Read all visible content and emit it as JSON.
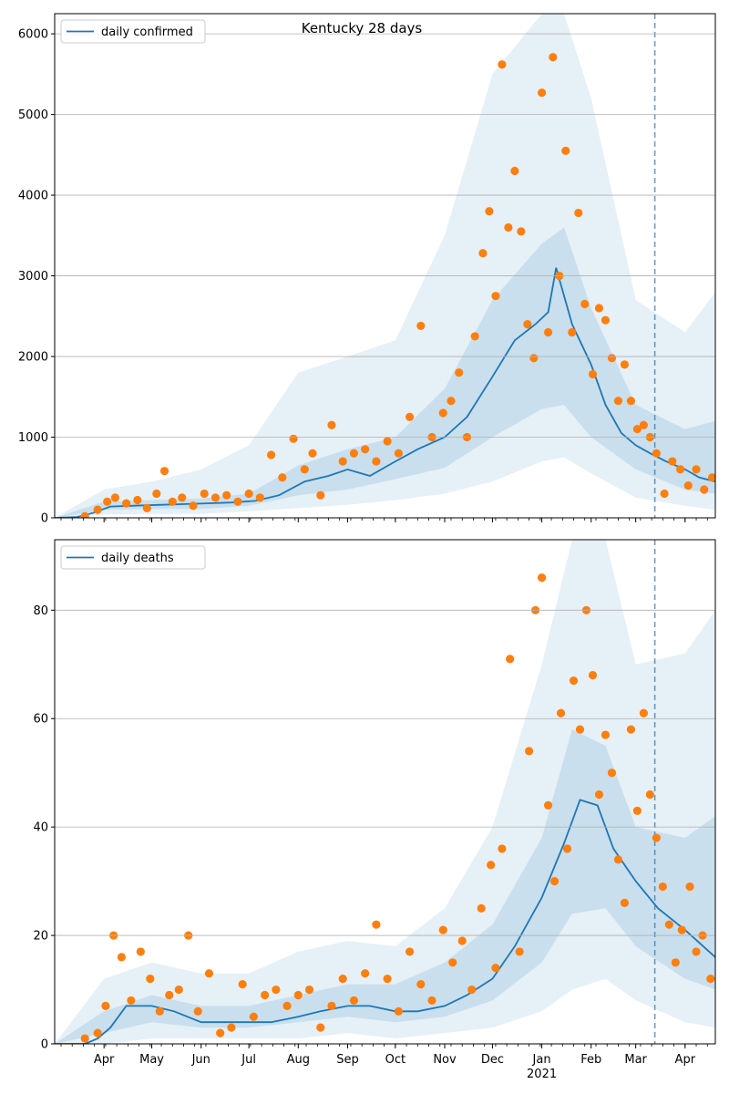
{
  "figure": {
    "title": "Kentucky 28 days"
  },
  "colors": {
    "line": "#1f77b4",
    "points": "#ff7f0e",
    "band": "#1f77b4",
    "grid": "#b0b0b0",
    "axis": "#000000"
  },
  "chart_data": [
    {
      "type": "line",
      "name": "cases",
      "legend": "daily confirmed",
      "legend_position": "top-left",
      "grid": "horizontal",
      "x_unit": "date",
      "x_range": [
        "2020-03-01",
        "2021-04-20"
      ],
      "y_range": [
        0,
        6250
      ],
      "y_ticks": [
        0,
        1000,
        2000,
        3000,
        4000,
        5000,
        6000
      ],
      "forecast_start": "2021-03-13",
      "series": [
        {
          "name": "daily confirmed",
          "x": [
            "2020-03-01",
            "2020-03-15",
            "2020-03-25",
            "2020-04-05",
            "2020-04-20",
            "2020-05-05",
            "2020-05-20",
            "2020-06-05",
            "2020-06-20",
            "2020-07-05",
            "2020-07-20",
            "2020-08-05",
            "2020-08-20",
            "2020-09-01",
            "2020-09-15",
            "2020-10-01",
            "2020-10-15",
            "2020-11-01",
            "2020-11-15",
            "2020-12-01",
            "2020-12-15",
            "2020-12-28",
            "2021-01-05",
            "2021-01-10",
            "2021-01-20",
            "2021-02-01",
            "2021-02-10",
            "2021-02-20",
            "2021-03-01",
            "2021-03-10",
            "2021-03-20",
            "2021-04-01",
            "2021-04-10",
            "2021-04-20"
          ],
          "y": [
            0,
            10,
            60,
            140,
            150,
            160,
            170,
            180,
            190,
            210,
            280,
            450,
            520,
            600,
            520,
            700,
            850,
            1000,
            1250,
            1750,
            2200,
            2400,
            2550,
            3100,
            2400,
            1900,
            1400,
            1050,
            900,
            800,
            700,
            600,
            500,
            450
          ]
        }
      ],
      "band_inner": {
        "x": [
          "2020-03-01",
          "2020-04-01",
          "2020-05-01",
          "2020-06-01",
          "2020-07-01",
          "2020-08-01",
          "2020-09-01",
          "2020-10-01",
          "2020-11-01",
          "2020-12-01",
          "2021-01-01",
          "2021-01-15",
          "2021-02-01",
          "2021-03-01",
          "2021-04-01",
          "2021-04-20"
        ],
        "low": [
          0,
          100,
          110,
          110,
          150,
          280,
          350,
          480,
          620,
          1000,
          1350,
          1400,
          1000,
          600,
          350,
          300
        ],
        "high": [
          0,
          200,
          220,
          240,
          300,
          650,
          850,
          1000,
          1600,
          2700,
          3400,
          3600,
          2600,
          1400,
          1100,
          1200
        ]
      },
      "band_outer": {
        "x": [
          "2020-03-01",
          "2020-04-01",
          "2020-05-01",
          "2020-06-01",
          "2020-07-01",
          "2020-08-01",
          "2020-09-01",
          "2020-10-01",
          "2020-11-01",
          "2020-12-01",
          "2021-01-01",
          "2021-01-15",
          "2021-02-01",
          "2021-03-01",
          "2021-04-01",
          "2021-04-20"
        ],
        "low": [
          0,
          40,
          50,
          50,
          80,
          120,
          160,
          220,
          300,
          450,
          700,
          750,
          550,
          250,
          150,
          100
        ],
        "high": [
          0,
          350,
          450,
          600,
          900,
          1800,
          2000,
          2200,
          3500,
          5500,
          6250,
          6250,
          5200,
          2700,
          2300,
          2800
        ]
      },
      "points": {
        "x": [
          "2020-03-20",
          "2020-03-28",
          "2020-04-03",
          "2020-04-08",
          "2020-04-15",
          "2020-04-22",
          "2020-04-28",
          "2020-05-04",
          "2020-05-09",
          "2020-05-14",
          "2020-05-20",
          "2020-05-27",
          "2020-06-03",
          "2020-06-10",
          "2020-06-17",
          "2020-06-24",
          "2020-07-01",
          "2020-07-08",
          "2020-07-15",
          "2020-07-22",
          "2020-07-29",
          "2020-08-05",
          "2020-08-10",
          "2020-08-15",
          "2020-08-22",
          "2020-08-29",
          "2020-09-05",
          "2020-09-12",
          "2020-09-19",
          "2020-09-26",
          "2020-10-03",
          "2020-10-10",
          "2020-10-17",
          "2020-10-24",
          "2020-10-31",
          "2020-11-05",
          "2020-11-10",
          "2020-11-15",
          "2020-11-20",
          "2020-11-25",
          "2020-11-29",
          "2020-12-03",
          "2020-12-07",
          "2020-12-11",
          "2020-12-15",
          "2020-12-19",
          "2020-12-23",
          "2020-12-27",
          "2021-01-01",
          "2021-01-05",
          "2021-01-08",
          "2021-01-12",
          "2021-01-16",
          "2021-01-20",
          "2021-01-24",
          "2021-01-28",
          "2021-02-02",
          "2021-02-06",
          "2021-02-10",
          "2021-02-14",
          "2021-02-18",
          "2021-02-22",
          "2021-02-26",
          "2021-03-02",
          "2021-03-06",
          "2021-03-10",
          "2021-03-14",
          "2021-03-19",
          "2021-03-24",
          "2021-03-29",
          "2021-04-03",
          "2021-04-08",
          "2021-04-13",
          "2021-04-18"
        ],
        "y": [
          20,
          100,
          200,
          250,
          180,
          220,
          120,
          300,
          580,
          200,
          250,
          150,
          300,
          250,
          280,
          200,
          300,
          250,
          780,
          500,
          980,
          600,
          800,
          280,
          1150,
          700,
          800,
          850,
          700,
          950,
          800,
          1250,
          2380,
          1000,
          1300,
          1450,
          1800,
          1000,
          2250,
          3280,
          3800,
          2750,
          5620,
          3600,
          4300,
          3550,
          2400,
          1980,
          5270,
          2300,
          5710,
          3000,
          4550,
          2300,
          3780,
          2650,
          1780,
          2600,
          2450,
          1980,
          1450,
          1900,
          1450,
          1100,
          1150,
          1000,
          800,
          300,
          700,
          600,
          400,
          600,
          350,
          500
        ]
      }
    },
    {
      "type": "line",
      "name": "deaths",
      "legend": "daily deaths",
      "legend_position": "top-left",
      "grid": "horizontal",
      "x_unit": "date",
      "x_range": [
        "2020-03-01",
        "2021-04-20"
      ],
      "y_range": [
        0,
        93
      ],
      "y_ticks": [
        0,
        20,
        40,
        60,
        80
      ],
      "x_tick_labels": [
        "Apr",
        "May",
        "Jun",
        "Jul",
        "Aug",
        "Sep",
        "Oct",
        "Nov",
        "Dec",
        "Jan",
        "Feb",
        "Mar",
        "Apr"
      ],
      "x_tick_dates": [
        "2020-04-01",
        "2020-05-01",
        "2020-06-01",
        "2020-07-01",
        "2020-08-01",
        "2020-09-01",
        "2020-10-01",
        "2020-11-01",
        "2020-12-01",
        "2021-01-01",
        "2021-02-01",
        "2021-03-01",
        "2021-04-01"
      ],
      "year_label": "2021",
      "forecast_start": "2021-03-13",
      "series": [
        {
          "name": "daily deaths",
          "x": [
            "2020-03-01",
            "2020-03-20",
            "2020-03-28",
            "2020-04-05",
            "2020-04-15",
            "2020-05-01",
            "2020-05-15",
            "2020-06-01",
            "2020-06-15",
            "2020-07-01",
            "2020-07-15",
            "2020-08-01",
            "2020-08-15",
            "2020-09-01",
            "2020-09-15",
            "2020-10-01",
            "2020-10-15",
            "2020-11-01",
            "2020-11-15",
            "2020-12-01",
            "2020-12-15",
            "2021-01-01",
            "2021-01-15",
            "2021-01-25",
            "2021-02-05",
            "2021-02-15",
            "2021-03-01",
            "2021-03-15",
            "2021-04-01",
            "2021-04-20"
          ],
          "y": [
            0,
            0,
            1,
            3,
            7,
            7,
            6,
            4,
            4,
            4,
            4,
            5,
            6,
            7,
            7,
            6,
            6,
            7,
            9,
            12,
            18,
            27,
            37,
            45,
            44,
            36,
            30,
            25,
            21,
            16
          ]
        }
      ],
      "band_inner": {
        "x": [
          "2020-03-01",
          "2020-04-01",
          "2020-05-01",
          "2020-06-01",
          "2020-07-01",
          "2020-08-01",
          "2020-09-01",
          "2020-10-01",
          "2020-11-01",
          "2020-12-01",
          "2021-01-01",
          "2021-01-20",
          "2021-02-10",
          "2021-03-01",
          "2021-04-01",
          "2021-04-20"
        ],
        "low": [
          0,
          2,
          4,
          3,
          3,
          4,
          5,
          4,
          5,
          8,
          15,
          24,
          25,
          18,
          12,
          10
        ],
        "high": [
          0,
          6,
          9,
          7,
          7,
          9,
          11,
          11,
          15,
          22,
          38,
          58,
          55,
          40,
          38,
          42
        ]
      },
      "band_outer": {
        "x": [
          "2020-03-01",
          "2020-04-01",
          "2020-05-01",
          "2020-06-01",
          "2020-07-01",
          "2020-08-01",
          "2020-09-01",
          "2020-10-01",
          "2020-11-01",
          "2020-12-01",
          "2021-01-01",
          "2021-01-20",
          "2021-02-10",
          "2021-03-01",
          "2021-04-01",
          "2021-04-20"
        ],
        "low": [
          0,
          0,
          1,
          1,
          1,
          1,
          2,
          1,
          2,
          3,
          6,
          10,
          12,
          8,
          4,
          3
        ],
        "high": [
          0,
          12,
          15,
          13,
          13,
          17,
          19,
          18,
          25,
          40,
          70,
          93,
          93,
          70,
          72,
          80
        ]
      },
      "points": {
        "x": [
          "2020-03-20",
          "2020-03-28",
          "2020-04-02",
          "2020-04-07",
          "2020-04-12",
          "2020-04-18",
          "2020-04-24",
          "2020-04-30",
          "2020-05-06",
          "2020-05-12",
          "2020-05-18",
          "2020-05-24",
          "2020-05-30",
          "2020-06-06",
          "2020-06-13",
          "2020-06-20",
          "2020-06-27",
          "2020-07-04",
          "2020-07-11",
          "2020-07-18",
          "2020-07-25",
          "2020-08-01",
          "2020-08-08",
          "2020-08-15",
          "2020-08-22",
          "2020-08-29",
          "2020-09-05",
          "2020-09-12",
          "2020-09-19",
          "2020-09-26",
          "2020-10-03",
          "2020-10-10",
          "2020-10-17",
          "2020-10-24",
          "2020-10-31",
          "2020-11-06",
          "2020-11-12",
          "2020-11-18",
          "2020-11-24",
          "2020-11-30",
          "2020-12-03",
          "2020-12-07",
          "2020-12-12",
          "2020-12-18",
          "2020-12-24",
          "2020-12-28",
          "2021-01-01",
          "2021-01-05",
          "2021-01-09",
          "2021-01-13",
          "2021-01-17",
          "2021-01-21",
          "2021-01-25",
          "2021-01-29",
          "2021-02-02",
          "2021-02-06",
          "2021-02-10",
          "2021-02-14",
          "2021-02-18",
          "2021-02-22",
          "2021-02-26",
          "2021-03-02",
          "2021-03-06",
          "2021-03-10",
          "2021-03-14",
          "2021-03-18",
          "2021-03-22",
          "2021-03-26",
          "2021-03-30",
          "2021-04-04",
          "2021-04-08",
          "2021-04-12",
          "2021-04-17"
        ],
        "y": [
          1,
          2,
          7,
          20,
          16,
          8,
          17,
          12,
          6,
          9,
          10,
          20,
          6,
          13,
          2,
          3,
          11,
          5,
          9,
          10,
          7,
          9,
          10,
          3,
          7,
          12,
          8,
          13,
          22,
          12,
          6,
          17,
          11,
          8,
          21,
          15,
          19,
          10,
          25,
          33,
          14,
          36,
          71,
          17,
          54,
          80,
          86,
          44,
          30,
          61,
          36,
          67,
          58,
          80,
          68,
          46,
          57,
          50,
          34,
          26,
          58,
          43,
          61,
          46,
          38,
          29,
          22,
          15,
          21,
          29,
          17,
          20,
          12
        ]
      }
    }
  ]
}
